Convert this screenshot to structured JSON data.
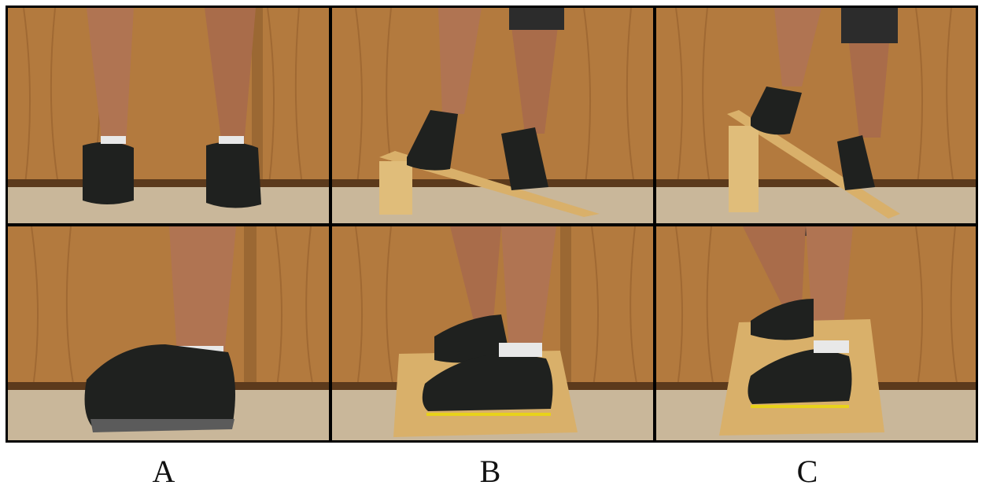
{
  "figure": {
    "labels": [
      "A",
      "B",
      "C"
    ],
    "panels": [
      {
        "column": "A",
        "row": "front",
        "scene": "standing-flat-front"
      },
      {
        "column": "B",
        "row": "front",
        "scene": "incline-board-low-front"
      },
      {
        "column": "C",
        "row": "front",
        "scene": "incline-board-high-front"
      },
      {
        "column": "A",
        "row": "side",
        "scene": "standing-flat-side"
      },
      {
        "column": "B",
        "row": "side",
        "scene": "board-side-low"
      },
      {
        "column": "C",
        "row": "side",
        "scene": "board-side-high"
      }
    ]
  },
  "colors": {
    "wood_wall": "#b37a3e",
    "wood_wall_dark": "#8a5526",
    "floor": "#c9b79a",
    "skin": "#b07452",
    "shoe": "#1f211f",
    "plywood": "#d9b06a",
    "tape": "#e8d21a"
  }
}
